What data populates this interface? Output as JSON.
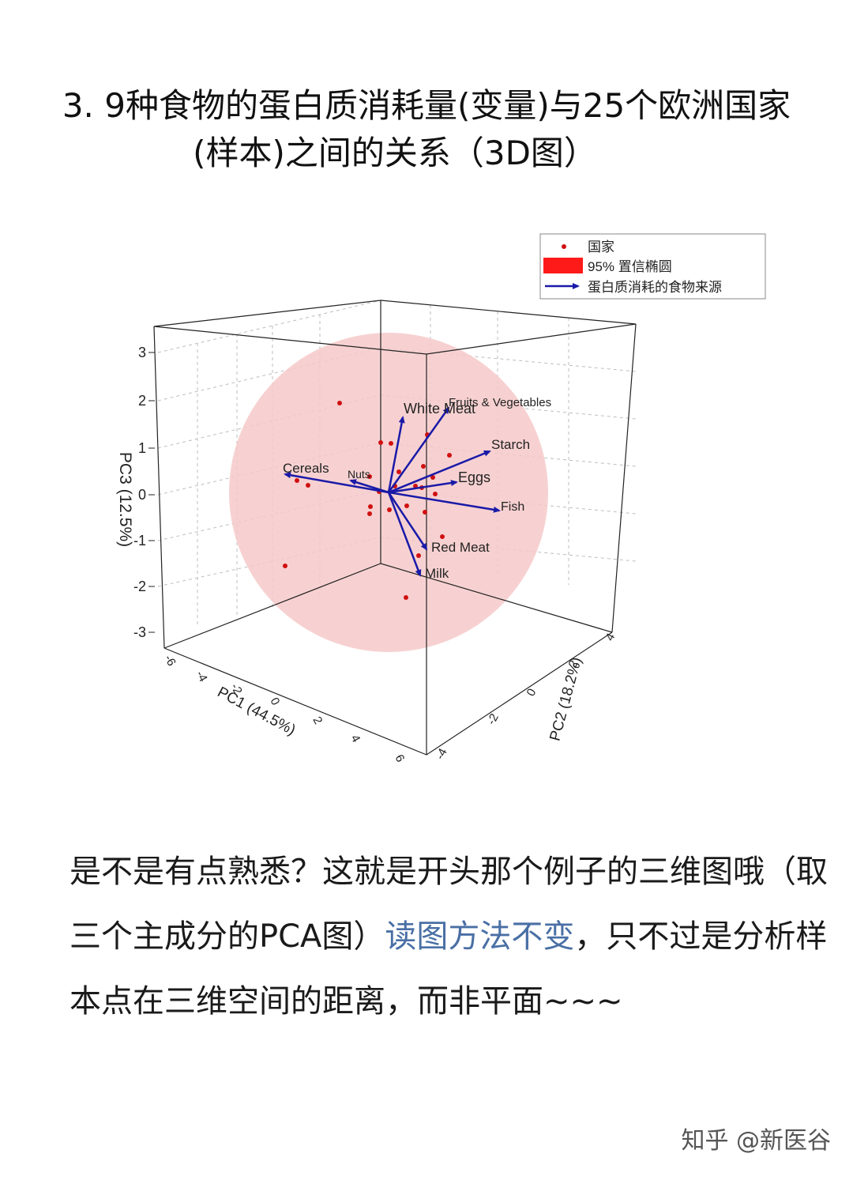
{
  "header": {
    "title_line1": "3. 9种食物的蛋白质消耗量(变量)与25个欧洲国家",
    "title_line2": "(样本)之间的关系（3D图）"
  },
  "chart_data": {
    "type": "scatter",
    "subtype": "3d-pca-biplot",
    "title": "",
    "axes": {
      "x": {
        "label": "PC1 (44.5%)",
        "ticks": [
          "-6",
          "-4",
          "-2",
          "0",
          "2",
          "4",
          "6"
        ]
      },
      "y": {
        "label": "PC2 (18.2%)",
        "ticks": [
          "-4",
          "-2",
          "0",
          "2",
          "4"
        ]
      },
      "z": {
        "label": "PC3 (12.5%)",
        "ticks": [
          "3",
          "2",
          "1",
          "0",
          "-1",
          "-2",
          "-3"
        ]
      }
    },
    "legend": {
      "placement": "top-right",
      "items": [
        {
          "label": "国家",
          "symbol": "dot",
          "color": "#d01010"
        },
        {
          "label": "95% 置信椭圆",
          "symbol": "rect",
          "color": "#ff1a1a"
        },
        {
          "label": "蛋白质消耗的食物来源",
          "symbol": "arrow",
          "color": "#1a1aa8"
        }
      ]
    },
    "loadings": [
      {
        "name": "White Meat"
      },
      {
        "name": "Fruits & Vegetables"
      },
      {
        "name": "Starch"
      },
      {
        "name": "Eggs"
      },
      {
        "name": "Fish"
      },
      {
        "name": "Red Meat"
      },
      {
        "name": "Milk"
      },
      {
        "name": "Cereals"
      },
      {
        "name": "Nuts"
      }
    ],
    "countries_count": 25,
    "colors": {
      "points": "#d01010",
      "ellipse": "#f6c9c9",
      "arrows": "#1a1aa8",
      "grid": "#bbbbbb"
    }
  },
  "body": {
    "para_part1": "是不是有点熟悉？这就是开头那个例子的三维图哦（取三个主成分的PCA图）",
    "para_link": "读图方法不变",
    "para_part2": "，只不过是分析样本点在三维空间的距离，而非平面~~~"
  },
  "watermark": "知乎 @新医谷"
}
